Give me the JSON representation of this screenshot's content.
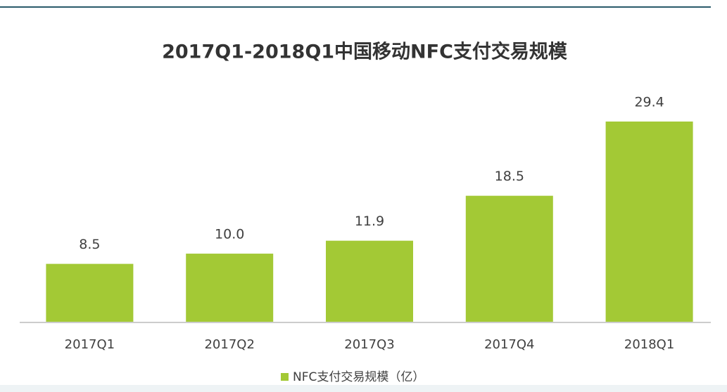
{
  "chart_data": {
    "type": "bar",
    "title": "2017Q1-2018Q1中国移动NFC支付交易规模",
    "categories": [
      "2017Q1",
      "2017Q2",
      "2017Q3",
      "2017Q4",
      "2018Q1"
    ],
    "series": [
      {
        "name": "NFC支付交易规模（亿）",
        "color": "#a3c935",
        "values": [
          8.5,
          10.0,
          11.9,
          18.5,
          29.4
        ],
        "value_labels": [
          "8.5",
          "10.0",
          "11.9",
          "18.5",
          "29.4"
        ]
      }
    ]
  }
}
